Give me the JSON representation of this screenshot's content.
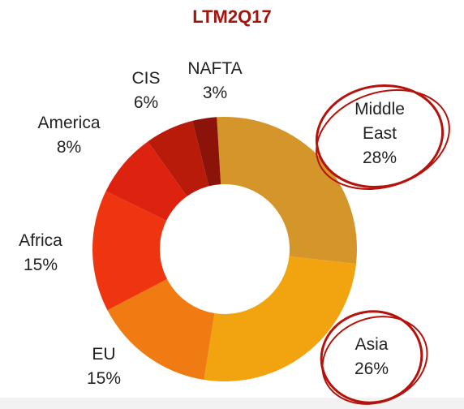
{
  "chart_data": {
    "type": "donut",
    "title": "LTM2Q17",
    "categories": [
      "Middle East",
      "Asia",
      "EU",
      "Africa",
      "America",
      "CIS",
      "NAFTA"
    ],
    "values": [
      28,
      26,
      15,
      15,
      8,
      6,
      3
    ],
    "value_labels": [
      "28%",
      "26%",
      "15%",
      "15%",
      "8%",
      "6%",
      "3%"
    ],
    "colors": [
      "#d4952a",
      "#f1a40f",
      "#f07b12",
      "#ef3510",
      "#de2210",
      "#b81b0a",
      "#8b1309"
    ]
  }
}
